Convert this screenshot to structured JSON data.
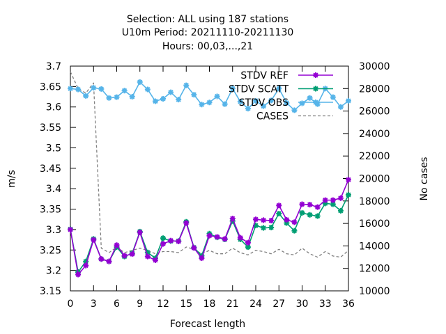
{
  "chart_data": {
    "type": "line",
    "title_lines": [
      "Selection: ALL using   187 stations",
      "U10m   Period: 20211110-20211130",
      "Hours:  00,03,...,21"
    ],
    "xlabel": "Forecast length",
    "ylabel": "m/s",
    "y2label": "No cases",
    "xlim": [
      0,
      36
    ],
    "ylim": [
      3.15,
      3.7
    ],
    "y2lim": [
      10000,
      30000
    ],
    "x_ticks": [
      0,
      3,
      6,
      9,
      12,
      15,
      18,
      21,
      24,
      27,
      30,
      33,
      36
    ],
    "y_ticks": [
      "3.15",
      "3.2",
      "3.25",
      "3.3",
      "3.35",
      "3.4",
      "3.45",
      "3.5",
      "3.55",
      "3.6",
      "3.65",
      "3.7"
    ],
    "y2_ticks": [
      "10000",
      "12000",
      "14000",
      "16000",
      "18000",
      "20000",
      "22000",
      "24000",
      "26000",
      "28000",
      "30000"
    ],
    "legend_position": "top-right",
    "x": [
      0,
      1,
      2,
      3,
      4,
      5,
      6,
      7,
      8,
      9,
      10,
      11,
      12,
      13,
      14,
      15,
      16,
      17,
      18,
      19,
      20,
      21,
      22,
      23,
      24,
      25,
      26,
      27,
      28,
      29,
      30,
      31,
      32,
      33,
      34,
      35,
      36
    ],
    "series": [
      {
        "name": "STDV REF",
        "axis": "left",
        "color": "#9400d3",
        "marker": "star",
        "values": [
          3.3,
          3.19,
          3.212,
          3.275,
          3.228,
          3.222,
          3.262,
          3.236,
          3.24,
          3.293,
          3.234,
          3.225,
          3.265,
          3.273,
          3.271,
          3.316,
          3.255,
          3.23,
          3.285,
          3.282,
          3.277,
          3.327,
          3.28,
          3.268,
          3.325,
          3.323,
          3.322,
          3.359,
          3.324,
          3.318,
          3.362,
          3.361,
          3.355,
          3.372,
          3.372,
          3.377,
          3.422
        ]
      },
      {
        "name": "STDV SCATT",
        "axis": "left",
        "color": "#009e73",
        "marker": "star",
        "values": [
          3.301,
          3.196,
          3.222,
          3.277,
          3.228,
          3.222,
          3.257,
          3.234,
          3.242,
          3.295,
          3.244,
          3.23,
          3.279,
          3.272,
          3.272,
          3.319,
          3.256,
          3.236,
          3.29,
          3.281,
          3.276,
          3.321,
          3.276,
          3.257,
          3.31,
          3.304,
          3.305,
          3.339,
          3.316,
          3.297,
          3.341,
          3.336,
          3.333,
          3.364,
          3.362,
          3.346,
          3.385
        ]
      },
      {
        "name": "STDV OBS",
        "axis": "left",
        "color": "#56b4e9",
        "marker": "star",
        "values": [
          3.645,
          3.643,
          3.627,
          3.647,
          3.644,
          3.622,
          3.624,
          3.64,
          3.625,
          3.661,
          3.643,
          3.614,
          3.62,
          3.636,
          3.618,
          3.653,
          3.63,
          3.606,
          3.611,
          3.626,
          3.607,
          3.645,
          3.613,
          3.596,
          3.615,
          3.602,
          3.616,
          3.645,
          3.61,
          3.592,
          3.609,
          3.622,
          3.607,
          3.645,
          3.624,
          3.6,
          3.615
        ]
      },
      {
        "name": "CASES",
        "axis": "right",
        "color": "#808080",
        "dashed": true,
        "values": [
          29500,
          28000,
          27600,
          28500,
          13800,
          13400,
          13900,
          13400,
          13600,
          13800,
          13600,
          13300,
          13500,
          13500,
          13400,
          13900,
          13700,
          13300,
          13600,
          13300,
          13300,
          13800,
          13400,
          13200,
          13600,
          13500,
          13300,
          13700,
          13300,
          13200,
          13800,
          13300,
          13000,
          13500,
          13100,
          13000,
          13600
        ]
      }
    ]
  }
}
